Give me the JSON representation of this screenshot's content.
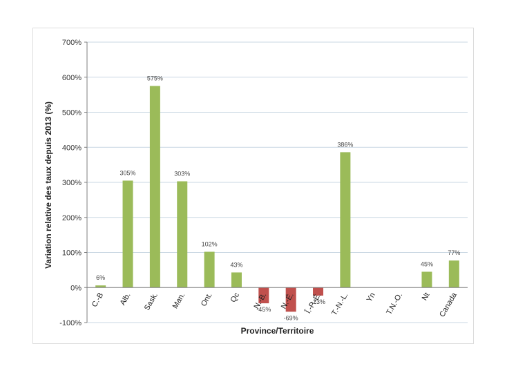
{
  "chart_data": {
    "type": "bar",
    "title": "",
    "xlabel": "Province/Territoire",
    "ylabel": "Variation relative des taux depuis 2013 (%)",
    "ylim": [
      -100,
      700
    ],
    "yticks": [
      -100,
      0,
      100,
      200,
      300,
      400,
      500,
      600,
      700
    ],
    "ytick_labels": [
      "-100%",
      "0%",
      "100%",
      "200%",
      "300%",
      "400%",
      "500%",
      "600%",
      "700%"
    ],
    "grid": true,
    "categories": [
      "C.-B",
      "Alb.",
      "Sask.",
      "Man.",
      "Ont.",
      "Qc",
      "N.-B.",
      "N.-É.",
      "Î.-P.-É.",
      "T.-N.-L.",
      "Yn",
      "T.N.-O.",
      "Nt",
      "Canada"
    ],
    "values": [
      6,
      305,
      575,
      303,
      102,
      43,
      -45,
      -69,
      -23,
      386,
      null,
      null,
      45,
      77
    ],
    "data_labels": [
      "6%",
      "305%",
      "575%",
      "303%",
      "102%",
      "43%",
      "-45%",
      "-69%",
      "-23%",
      "386%",
      "",
      "",
      "45%",
      "77%"
    ],
    "colors": {
      "positive": "#9bbb59",
      "negative": "#c0504d",
      "grid": "#c9d7e3",
      "axis": "#7f7f7f"
    }
  }
}
